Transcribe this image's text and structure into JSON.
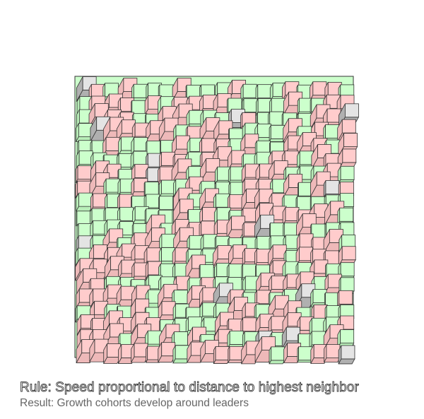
{
  "caption": {
    "rule": "Rule: Speed proportional to distance to highest neighbor",
    "result": "Result: Growth cohorts develop around leaders"
  },
  "colors": {
    "background": "#ffffff",
    "outline": "#333333",
    "cohort_a": "#ffcccc",
    "cohort_b": "#ccffcc",
    "leader": "#e4e4e4",
    "side": "#b0b0b0"
  },
  "grid": {
    "cols": 20,
    "rows": 20,
    "seed": 7
  }
}
